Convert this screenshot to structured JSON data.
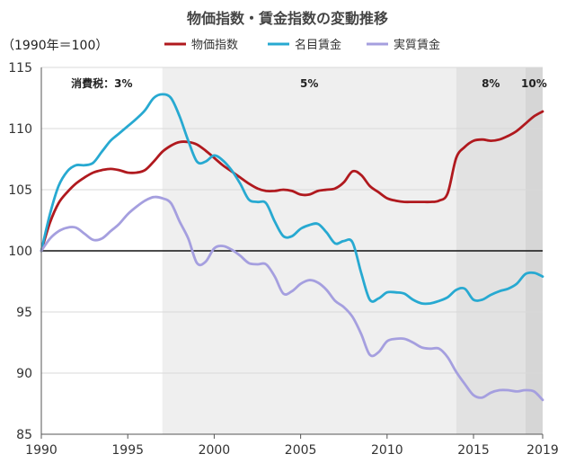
{
  "chart_data": {
    "type": "line",
    "title": "物価指数・賃金指数の変動推移",
    "unit_label": "（1990年＝100）",
    "xlabel": "",
    "ylabel": "",
    "xlim": [
      1990,
      2019
    ],
    "ylim": [
      85,
      115
    ],
    "x_ticks": [
      1990,
      1995,
      2000,
      2005,
      2010,
      2015,
      2019
    ],
    "y_ticks": [
      85,
      90,
      95,
      100,
      105,
      110,
      115
    ],
    "reference_line": 100,
    "grid": "horizontal",
    "legend_position": "top-right",
    "tax_periods": [
      {
        "label": "消費税：3%",
        "from": 1990,
        "to": 1997,
        "color": "#ffffff"
      },
      {
        "label": "5%",
        "from": 1997,
        "to": 2014,
        "color": "#efefef"
      },
      {
        "label": "8%",
        "from": 2014,
        "to": 2018,
        "color": "#e2e2e2"
      },
      {
        "label": "10%",
        "from": 2018,
        "to": 2019,
        "color": "#d6d6d6"
      }
    ],
    "x": [
      1990,
      1990.5,
      1991,
      1991.5,
      1992,
      1992.5,
      1993,
      1993.5,
      1994,
      1994.5,
      1995,
      1995.5,
      1996,
      1996.5,
      1997,
      1997.5,
      1998,
      1998.5,
      1999,
      1999.5,
      2000,
      2000.5,
      2001,
      2001.5,
      2002,
      2002.5,
      2003,
      2003.5,
      2004,
      2004.5,
      2005,
      2005.5,
      2006,
      2006.5,
      2007,
      2007.5,
      2008,
      2008.5,
      2009,
      2009.5,
      2010,
      2010.5,
      2011,
      2011.5,
      2012,
      2012.5,
      2013,
      2013.5,
      2014,
      2014.5,
      2015,
      2015.5,
      2016,
      2016.5,
      2017,
      2017.5,
      2018,
      2018.5,
      2019
    ],
    "series": [
      {
        "name": "物価指数",
        "color": "#b0191e",
        "values": [
          100.0,
          102.3,
          103.9,
          104.8,
          105.5,
          106.0,
          106.4,
          106.6,
          106.7,
          106.6,
          106.4,
          106.4,
          106.6,
          107.3,
          108.1,
          108.6,
          108.9,
          108.9,
          108.7,
          108.2,
          107.6,
          107.0,
          106.5,
          106.0,
          105.5,
          105.1,
          104.9,
          104.9,
          105.0,
          104.9,
          104.6,
          104.6,
          104.9,
          105.0,
          105.1,
          105.6,
          106.5,
          106.2,
          105.3,
          104.8,
          104.3,
          104.1,
          104.0,
          104.0,
          104.0,
          104.0,
          104.1,
          104.7,
          107.6,
          108.5,
          109.0,
          109.1,
          109.0,
          109.1,
          109.4,
          109.8,
          110.4,
          111.0,
          111.4
        ]
      },
      {
        "name": "名目賃金",
        "color": "#27a9d1",
        "values": [
          100.0,
          103.0,
          105.3,
          106.5,
          107.0,
          107.0,
          107.2,
          108.1,
          109.0,
          109.6,
          110.2,
          110.8,
          111.5,
          112.5,
          112.8,
          112.5,
          111.0,
          109.0,
          107.3,
          107.3,
          107.8,
          107.4,
          106.6,
          105.5,
          104.2,
          104.0,
          103.9,
          102.4,
          101.2,
          101.2,
          101.8,
          102.1,
          102.2,
          101.5,
          100.6,
          100.8,
          100.7,
          98.2,
          96.0,
          96.1,
          96.6,
          96.6,
          96.5,
          96.0,
          95.7,
          95.7,
          95.9,
          96.2,
          96.8,
          96.9,
          96.0,
          96.0,
          96.4,
          96.7,
          96.9,
          97.3,
          98.1,
          98.2,
          97.9
        ]
      },
      {
        "name": "実質賃金",
        "color": "#a59fdf",
        "values": [
          100.0,
          101.0,
          101.6,
          101.9,
          101.9,
          101.4,
          100.9,
          101.0,
          101.6,
          102.2,
          103.0,
          103.6,
          104.1,
          104.4,
          104.3,
          103.9,
          102.4,
          101.0,
          99.0,
          99.1,
          100.2,
          100.4,
          100.1,
          99.6,
          99.0,
          98.9,
          98.9,
          97.9,
          96.5,
          96.7,
          97.3,
          97.6,
          97.4,
          96.8,
          95.9,
          95.4,
          94.6,
          93.2,
          91.5,
          91.7,
          92.6,
          92.8,
          92.8,
          92.5,
          92.1,
          92.0,
          92.0,
          91.3,
          90.1,
          89.1,
          88.2,
          88.0,
          88.4,
          88.6,
          88.6,
          88.5,
          88.6,
          88.5,
          87.8
        ]
      }
    ]
  }
}
